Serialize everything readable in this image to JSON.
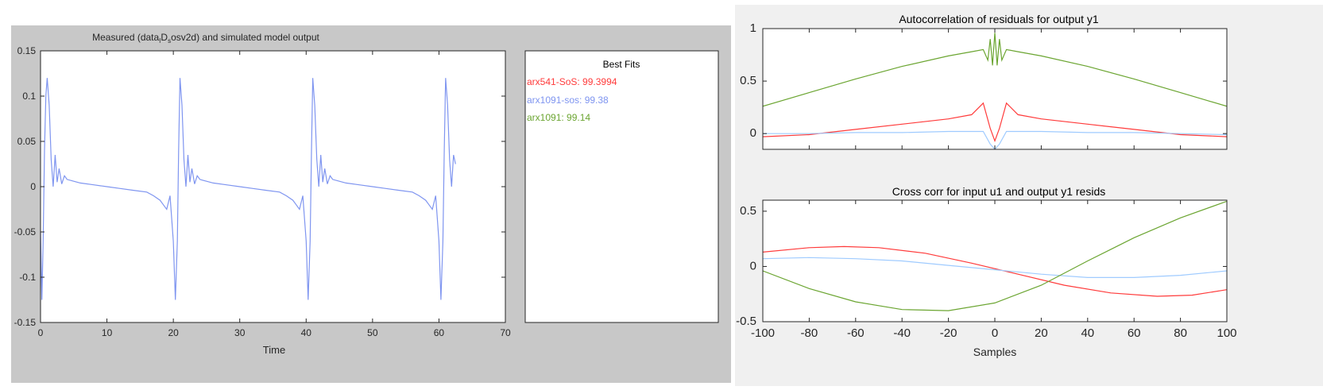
{
  "colors": {
    "red": "#ff3b3b",
    "blue": "#7f95f0",
    "lightblue": "#9fcbff",
    "green": "#6ba531",
    "axis": "#262626"
  },
  "chart_data": [
    {
      "type": "line",
      "title": "Measured (data_IDsosv2d) and simulated model output",
      "title_parts": {
        "a": "Measured (data",
        "sub1": "I",
        "b": "D",
        "sub2": "s",
        "c": "osv2d) and simulated model output"
      },
      "xlabel": "Time",
      "ylabel": "",
      "xlim": [
        0,
        70
      ],
      "ylim": [
        -0.15,
        0.15
      ],
      "xticks": [
        0,
        10,
        20,
        30,
        40,
        50,
        60,
        70
      ],
      "xtick_labels": [
        "0",
        "10",
        "20",
        "30",
        "40",
        "50",
        "60",
        "70"
      ],
      "yticks": [
        -0.15,
        -0.1,
        -0.05,
        0,
        0.05,
        0.1,
        0.15
      ],
      "ytick_labels": [
        "-0.15",
        "-0.1",
        "-0.05",
        "0",
        "0.05",
        "0.1",
        "0.15"
      ],
      "grid": false,
      "series": [
        {
          "color": "#7f95f0",
          "x": [
            0,
            0.2,
            0.4,
            0.6,
            0.8,
            1.0,
            1.3,
            1.6,
            1.9,
            2.2,
            2.5,
            2.8,
            3.2,
            3.6,
            4,
            5,
            6,
            8,
            10,
            12,
            14,
            16,
            17,
            18,
            18.5,
            19,
            19.5,
            20,
            20.3,
            20.6,
            20.8,
            21,
            21.3,
            21.6,
            21.9,
            22.2,
            22.5,
            22.8,
            23.2,
            23.6,
            24,
            25,
            26,
            28,
            30,
            32,
            34,
            36,
            37,
            38,
            38.5,
            39,
            39.5,
            40,
            40.3,
            40.6,
            40.8,
            41,
            41.3,
            41.6,
            41.9,
            42.2,
            42.5,
            42.8,
            43.2,
            43.6,
            44,
            45,
            46,
            48,
            50,
            52,
            54,
            56,
            57,
            58,
            58.5,
            59,
            59.5,
            60,
            60.3,
            60.6,
            60.8,
            61,
            61.3,
            61.6,
            61.9,
            62.2,
            62.5
          ],
          "y": [
            -0.05,
            -0.125,
            -0.06,
            0.04,
            0.1,
            0.12,
            0.09,
            0.03,
            0.0,
            0.035,
            0.005,
            0.02,
            0.003,
            0.012,
            0.008,
            0.006,
            0.004,
            0.002,
            0.0,
            -0.002,
            -0.004,
            -0.006,
            -0.01,
            -0.015,
            -0.02,
            -0.025,
            -0.01,
            -0.06,
            -0.125,
            -0.06,
            0.04,
            0.12,
            0.09,
            0.03,
            0.0,
            0.035,
            0.005,
            0.02,
            0.003,
            0.012,
            0.008,
            0.006,
            0.004,
            0.002,
            0.0,
            -0.002,
            -0.004,
            -0.006,
            -0.01,
            -0.015,
            -0.02,
            -0.025,
            -0.01,
            -0.06,
            -0.125,
            -0.06,
            0.04,
            0.12,
            0.09,
            0.03,
            0.0,
            0.035,
            0.005,
            0.02,
            0.003,
            0.012,
            0.008,
            0.006,
            0.004,
            0.002,
            0.0,
            -0.002,
            -0.004,
            -0.006,
            -0.01,
            -0.015,
            -0.02,
            -0.025,
            -0.01,
            -0.06,
            -0.125,
            -0.06,
            0.04,
            0.12,
            0.09,
            0.03,
            0.0,
            0.035,
            0.025
          ]
        }
      ],
      "legend": {
        "title": "Best Fits",
        "placement": "right panel",
        "entries": [
          {
            "text": "arx541-SoS: 99.3994",
            "color": "#ff3b3b"
          },
          {
            "text": "arx1091-sos: 99.38",
            "color": "#7f95f0"
          },
          {
            "text": "arx1091: 99.14",
            "color": "#6ba531"
          }
        ]
      }
    },
    {
      "type": "line",
      "title": "Autocorrelation of residuals for output y1",
      "xlabel": "",
      "ylabel": "",
      "xlim": [
        -100,
        100
      ],
      "ylim": [
        -0.15,
        1
      ],
      "yticks": [
        0,
        0.5,
        1
      ],
      "ytick_labels": [
        "0",
        "0.5",
        "1"
      ],
      "grid": false,
      "series": [
        {
          "color": "#6ba531",
          "x": [
            -100,
            -80,
            -60,
            -40,
            -20,
            -10,
            -5,
            -3,
            -2,
            -1,
            0,
            1,
            2,
            3,
            5,
            10,
            20,
            40,
            60,
            80,
            100
          ],
          "y": [
            0.26,
            0.39,
            0.52,
            0.64,
            0.74,
            0.78,
            0.8,
            0.7,
            0.9,
            0.65,
            0.96,
            0.65,
            0.9,
            0.7,
            0.8,
            0.78,
            0.74,
            0.64,
            0.52,
            0.39,
            0.26
          ]
        },
        {
          "color": "#ff3b3b",
          "x": [
            -100,
            -80,
            -60,
            -40,
            -20,
            -10,
            -5,
            -2,
            0,
            2,
            5,
            10,
            20,
            40,
            60,
            80,
            100
          ],
          "y": [
            -0.03,
            -0.01,
            0.04,
            0.09,
            0.14,
            0.18,
            0.29,
            0.05,
            -0.07,
            0.05,
            0.29,
            0.18,
            0.14,
            0.09,
            0.04,
            -0.01,
            -0.03
          ]
        },
        {
          "color": "#9fcbff",
          "x": [
            -100,
            -80,
            -60,
            -40,
            -20,
            -10,
            -5,
            -2,
            0,
            2,
            5,
            10,
            20,
            40,
            60,
            80,
            100
          ],
          "y": [
            0.0,
            0.0,
            0.01,
            0.01,
            0.02,
            0.02,
            0.02,
            -0.1,
            -0.15,
            -0.1,
            0.02,
            0.02,
            0.02,
            0.01,
            0.01,
            0.0,
            -0.01
          ]
        }
      ]
    },
    {
      "type": "line",
      "title": "Cross corr for input u1 and output y1 resids",
      "xlabel": "Samples",
      "ylabel": "",
      "xlim": [
        -100,
        100
      ],
      "ylim": [
        -0.5,
        0.6
      ],
      "xticks": [
        -100,
        -80,
        -60,
        -40,
        -20,
        0,
        20,
        40,
        60,
        80,
        100
      ],
      "xtick_labels": [
        "-100",
        "-80",
        "-60",
        "-40",
        "-20",
        "0",
        "20",
        "40",
        "60",
        "80",
        "100"
      ],
      "yticks": [
        -0.5,
        0,
        0.5
      ],
      "ytick_labels": [
        "-0.5",
        "0",
        "0.5"
      ],
      "grid": false,
      "series": [
        {
          "color": "#ff3b3b",
          "x": [
            -100,
            -80,
            -65,
            -50,
            -30,
            -10,
            10,
            30,
            50,
            70,
            85,
            100
          ],
          "y": [
            0.13,
            0.17,
            0.18,
            0.17,
            0.12,
            0.03,
            -0.07,
            -0.17,
            -0.24,
            -0.27,
            -0.26,
            -0.21
          ]
        },
        {
          "color": "#9fcbff",
          "x": [
            -100,
            -80,
            -60,
            -40,
            -20,
            0,
            20,
            40,
            60,
            80,
            100
          ],
          "y": [
            0.07,
            0.08,
            0.07,
            0.05,
            0.01,
            -0.03,
            -0.07,
            -0.1,
            -0.1,
            -0.08,
            -0.04
          ]
        },
        {
          "color": "#6ba531",
          "x": [
            -100,
            -80,
            -60,
            -40,
            -20,
            0,
            20,
            40,
            60,
            80,
            100
          ],
          "y": [
            -0.04,
            -0.2,
            -0.32,
            -0.39,
            -0.4,
            -0.33,
            -0.17,
            0.05,
            0.26,
            0.44,
            0.59
          ]
        }
      ]
    }
  ]
}
